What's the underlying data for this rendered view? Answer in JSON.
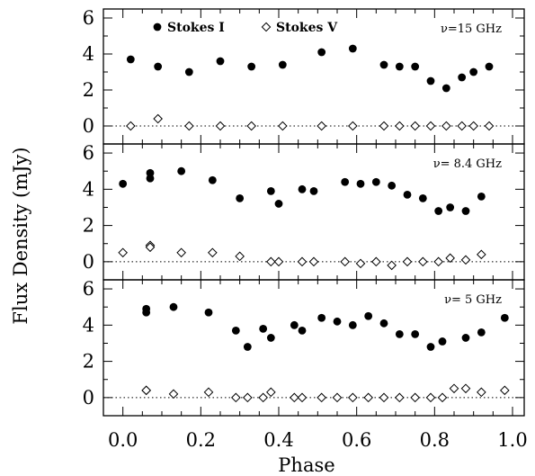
{
  "figure": {
    "ylabel": "Flux Density (mJy)",
    "xlabel": "Phase"
  },
  "legend": [
    {
      "label": "Stokes I",
      "marker": "filled-circle"
    },
    {
      "label": "Stokes V",
      "marker": "open-diamond"
    }
  ],
  "chart_data": [
    {
      "type": "scatter",
      "panel_label": "ν=15 GHz",
      "xlim": [
        -0.05,
        1.03
      ],
      "ylim": [
        -1,
        6.5
      ],
      "yticks": [
        0,
        2,
        4,
        6
      ],
      "reference_line": 0,
      "series": [
        {
          "name": "Stokes I",
          "marker": "filled-circle",
          "x": [
            0.02,
            0.09,
            0.17,
            0.25,
            0.33,
            0.41,
            0.51,
            0.59,
            0.67,
            0.71,
            0.75,
            0.79,
            0.83,
            0.87,
            0.9,
            0.94
          ],
          "y": [
            3.7,
            3.3,
            3.0,
            3.6,
            3.3,
            3.4,
            4.1,
            4.3,
            3.4,
            3.3,
            3.3,
            2.5,
            2.1,
            2.7,
            3.0,
            3.3
          ]
        },
        {
          "name": "Stokes V",
          "marker": "open-diamond",
          "x": [
            0.02,
            0.09,
            0.17,
            0.25,
            0.33,
            0.41,
            0.51,
            0.59,
            0.67,
            0.71,
            0.75,
            0.79,
            0.83,
            0.87,
            0.9,
            0.94
          ],
          "y": [
            0.0,
            0.4,
            0.0,
            0.0,
            0.0,
            0.0,
            0.0,
            0.0,
            0.0,
            0.0,
            0.0,
            0.0,
            0.0,
            0.0,
            0.0,
            0.0
          ]
        }
      ]
    },
    {
      "type": "scatter",
      "panel_label": "ν= 8.4 GHz",
      "xlim": [
        -0.05,
        1.03
      ],
      "ylim": [
        -1,
        6.5
      ],
      "yticks": [
        0,
        2,
        4,
        6
      ],
      "reference_line": 0,
      "series": [
        {
          "name": "Stokes I",
          "marker": "filled-circle",
          "x": [
            0.0,
            0.07,
            0.07,
            0.15,
            0.23,
            0.3,
            0.38,
            0.4,
            0.46,
            0.49,
            0.57,
            0.61,
            0.65,
            0.69,
            0.73,
            0.77,
            0.81,
            0.84,
            0.88,
            0.92
          ],
          "y": [
            4.3,
            4.9,
            4.6,
            5.0,
            4.5,
            3.5,
            3.9,
            3.2,
            4.0,
            3.9,
            4.4,
            4.3,
            4.4,
            4.2,
            3.7,
            3.5,
            2.8,
            3.0,
            2.8,
            3.6
          ]
        },
        {
          "name": "Stokes V",
          "marker": "open-diamond",
          "x": [
            0.0,
            0.07,
            0.07,
            0.15,
            0.23,
            0.3,
            0.38,
            0.4,
            0.46,
            0.49,
            0.57,
            0.61,
            0.65,
            0.69,
            0.73,
            0.77,
            0.81,
            0.84,
            0.88,
            0.92
          ],
          "y": [
            0.5,
            0.9,
            0.8,
            0.5,
            0.5,
            0.3,
            0.0,
            0.0,
            0.0,
            0.0,
            0.0,
            -0.1,
            0.0,
            -0.2,
            0.0,
            0.0,
            0.0,
            0.2,
            0.1,
            0.4
          ]
        }
      ]
    },
    {
      "type": "scatter",
      "panel_label": "ν= 5 GHz",
      "xlim": [
        -0.05,
        1.03
      ],
      "ylim": [
        -1,
        6.5
      ],
      "yticks": [
        0,
        2,
        4,
        6
      ],
      "reference_line": 0,
      "series": [
        {
          "name": "Stokes I",
          "marker": "filled-circle",
          "x": [
            0.06,
            0.06,
            0.13,
            0.22,
            0.29,
            0.32,
            0.36,
            0.38,
            0.44,
            0.46,
            0.51,
            0.55,
            0.59,
            0.63,
            0.67,
            0.71,
            0.75,
            0.79,
            0.82,
            0.88,
            0.92,
            0.98
          ],
          "y": [
            4.9,
            4.7,
            5.0,
            4.7,
            3.7,
            2.8,
            3.8,
            3.3,
            4.0,
            3.7,
            4.4,
            4.2,
            4.0,
            4.5,
            4.1,
            3.5,
            3.5,
            2.8,
            3.1,
            3.3,
            3.6,
            4.4
          ]
        },
        {
          "name": "Stokes V",
          "marker": "open-diamond",
          "x": [
            0.06,
            0.06,
            0.13,
            0.22,
            0.29,
            0.32,
            0.36,
            0.38,
            0.44,
            0.46,
            0.51,
            0.55,
            0.59,
            0.63,
            0.67,
            0.71,
            0.75,
            0.79,
            0.82,
            0.85,
            0.88,
            0.92,
            0.98
          ],
          "y": [
            0.4,
            0.4,
            0.2,
            0.3,
            0.0,
            0.0,
            0.0,
            0.3,
            0.0,
            0.0,
            0.0,
            0.0,
            0.0,
            0.0,
            0.0,
            0.0,
            0.0,
            0.0,
            0.0,
            0.5,
            0.5,
            0.3,
            0.4
          ]
        }
      ]
    }
  ],
  "xticks": [
    0.0,
    0.2,
    0.4,
    0.6,
    0.8,
    1.0
  ],
  "xtick_labels": [
    "0.0",
    "0.2",
    "0.4",
    "0.6",
    "0.8",
    "1.0"
  ]
}
